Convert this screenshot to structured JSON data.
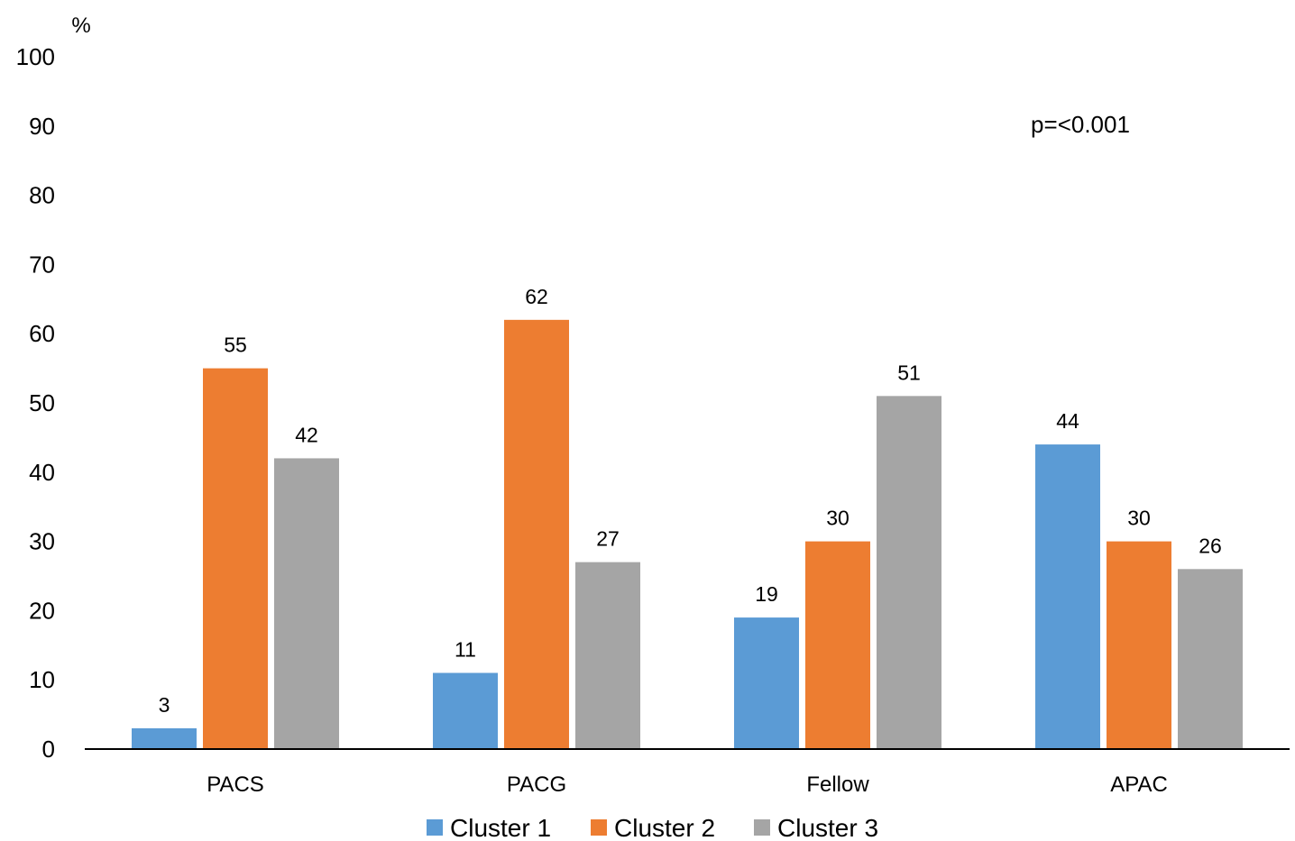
{
  "chart_data": {
    "type": "bar",
    "title": "",
    "xlabel": "",
    "ylabel": "%",
    "ylim": [
      0,
      100
    ],
    "yticks": [
      0,
      10,
      20,
      30,
      40,
      50,
      60,
      70,
      80,
      90,
      100
    ],
    "categories": [
      "PACS",
      "PACG",
      "Fellow",
      "APAC"
    ],
    "series": [
      {
        "name": "Cluster 1",
        "color": "#5b9bd5",
        "values": [
          3,
          11,
          19,
          44
        ],
        "value_labels": [
          "3",
          "11",
          "19",
          "44"
        ]
      },
      {
        "name": "Cluster 2",
        "color": "#ed7d31",
        "values": [
          55,
          62,
          30,
          30
        ],
        "value_labels": [
          "55",
          "62",
          "30",
          "30"
        ]
      },
      {
        "name": "Cluster 3",
        "color": "#a5a5a5",
        "values": [
          42,
          27,
          51,
          26
        ],
        "value_labels": [
          "42",
          "27",
          "51",
          "26"
        ]
      }
    ],
    "annotation": "p=<0.001",
    "grid": false,
    "legend": "bottom"
  }
}
